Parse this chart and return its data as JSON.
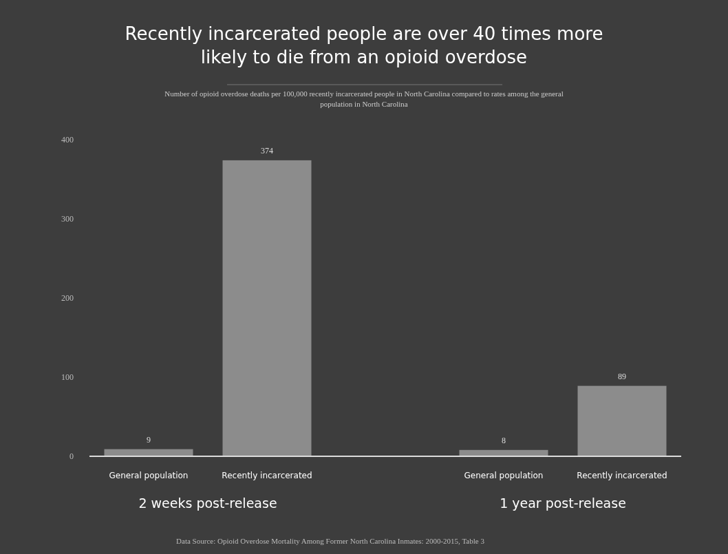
{
  "chart_data": {
    "type": "bar",
    "title": "Recently incarcerated people are over 40 times more likely to die from an opioid overdose",
    "subtitle": "Number of opioid overdose deaths per 100,000 recently incarcerated people in North Carolina compared to rates among the general population in North Carolina",
    "categories": [
      "General population",
      "Recently incarcerated",
      "General population",
      "Recently incarcerated"
    ],
    "values": [
      9,
      374,
      8,
      89
    ],
    "color": "#8c8c8c",
    "data_labels": true,
    "ylim": [
      0,
      400
    ],
    "yticks": [
      0,
      100,
      200,
      300,
      400
    ],
    "grid": false,
    "annotations": [
      "2 weeks post-release",
      "1 year post-release",
      "Data Source: Opioid Overdose Mortality Among Former North Carolina Inmates: 2000-2015, Table 3"
    ]
  }
}
